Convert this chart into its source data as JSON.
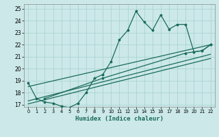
{
  "xlabel": "Humidex (Indice chaleur)",
  "bg_color": "#cce8e8",
  "grid_color": "#aad4d4",
  "line_color": "#1a6b5a",
  "xlim": [
    -0.5,
    22.5
  ],
  "ylim": [
    16.8,
    25.4
  ],
  "xticks": [
    0,
    1,
    2,
    3,
    4,
    5,
    6,
    7,
    8,
    9,
    10,
    11,
    12,
    13,
    14,
    15,
    16,
    17,
    18,
    19,
    20,
    21,
    22
  ],
  "yticks": [
    17,
    18,
    19,
    20,
    21,
    22,
    23,
    24,
    25
  ],
  "zigzag_x": [
    0,
    1,
    2,
    3,
    4,
    5,
    6,
    7,
    8,
    9,
    10,
    11,
    12,
    13,
    14,
    15,
    16,
    17,
    18,
    19,
    20,
    21,
    22
  ],
  "zigzag_y": [
    18.8,
    17.5,
    17.2,
    17.1,
    16.85,
    16.75,
    17.1,
    18.0,
    19.2,
    19.5,
    20.6,
    22.4,
    23.2,
    24.8,
    23.9,
    23.2,
    24.5,
    23.3,
    23.7,
    23.7,
    21.4,
    21.5,
    22.0
  ],
  "line1_x": [
    0,
    22
  ],
  "line1_y": [
    18.5,
    22.0
  ],
  "line2_x": [
    0,
    22
  ],
  "line2_y": [
    17.3,
    21.2
  ],
  "line3_x": [
    0,
    22
  ],
  "line3_y": [
    17.05,
    20.85
  ],
  "seg_x": [
    2,
    9,
    19,
    20,
    21,
    22
  ],
  "seg_y": [
    17.5,
    19.2,
    21.3,
    21.4,
    21.5,
    22.0
  ]
}
